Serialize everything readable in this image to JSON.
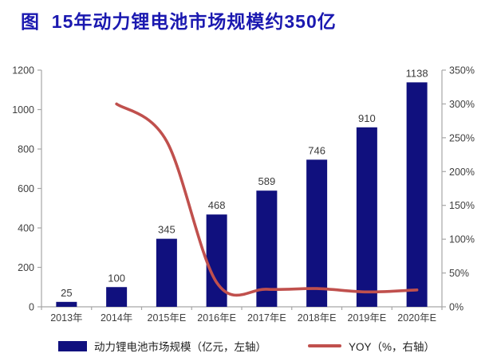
{
  "title": "图  15年动力锂电池市场规模约350亿",
  "colors": {
    "title": "#1b19b0",
    "bar": "#10107e",
    "line": "#c0504d",
    "axis": "#a6a6a6",
    "tick_text": "#3f3f3f",
    "value_text": "#3a3a3a",
    "background": "#ffffff"
  },
  "chart_data": {
    "type": "bar",
    "subtype": "bar-with-line-overlay-dual-axis",
    "title": "图  15年动力锂电池市场规模约350亿",
    "categories": [
      "2013年",
      "2014年",
      "2015年E",
      "2016年E",
      "2017年E",
      "2018年E",
      "2019年E",
      "2020年E"
    ],
    "series": [
      {
        "name": "动力锂电池市场规模（亿元，左轴）",
        "type": "bar",
        "axis": "left",
        "values": [
          25,
          100,
          345,
          468,
          589,
          746,
          910,
          1138
        ],
        "data_labels": [
          "25",
          "100",
          "345",
          "468",
          "589",
          "746",
          "910",
          "1138"
        ],
        "color": "#10107e"
      },
      {
        "name": "YOY（%，右轴）",
        "type": "line",
        "axis": "right",
        "values": [
          null,
          300,
          245,
          36,
          26,
          27,
          22,
          25
        ],
        "color": "#c0504d"
      }
    ],
    "left_axis": {
      "min": 0,
      "max": 1200,
      "step": 200,
      "tick_labels": [
        "0",
        "200",
        "400",
        "600",
        "800",
        "1000",
        "1200"
      ]
    },
    "right_axis": {
      "min": 0,
      "max": 350,
      "step": 50,
      "tick_labels": [
        "0%",
        "50%",
        "100%",
        "150%",
        "200%",
        "250%",
        "300%",
        "350%"
      ]
    },
    "grid": false,
    "legend_position": "bottom"
  },
  "legend": {
    "items": [
      {
        "label": "动力锂电池市场规模（亿元，左轴）",
        "swatch": "bar"
      },
      {
        "label": "YOY（%，右轴）",
        "swatch": "line"
      }
    ]
  }
}
